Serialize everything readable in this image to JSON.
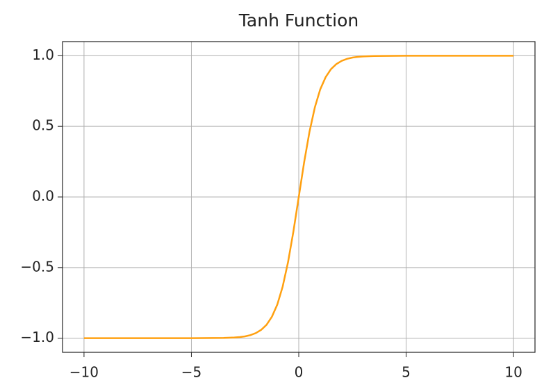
{
  "chart_data": {
    "type": "line",
    "title": "Tanh Function",
    "x": [
      -10,
      -9,
      -8,
      -7,
      -6,
      -5,
      -4,
      -3.5,
      -3,
      -2.75,
      -2.5,
      -2.25,
      -2,
      -1.75,
      -1.5,
      -1.25,
      -1,
      -0.75,
      -0.5,
      -0.25,
      0,
      0.25,
      0.5,
      0.75,
      1,
      1.25,
      1.5,
      1.75,
      2,
      2.25,
      2.5,
      2.75,
      3,
      3.5,
      4,
      5,
      6,
      7,
      8,
      9,
      10
    ],
    "series": [
      {
        "color": "#ffa010",
        "values": [
          -1,
          -1,
          -1,
          -1,
          -1,
          -1,
          -0.999,
          -0.998,
          -0.995,
          -0.992,
          -0.987,
          -0.978,
          -0.964,
          -0.941,
          -0.905,
          -0.848,
          -0.762,
          -0.635,
          -0.462,
          -0.245,
          0,
          0.245,
          0.462,
          0.635,
          0.762,
          0.848,
          0.905,
          0.941,
          0.964,
          0.978,
          0.987,
          0.992,
          0.995,
          0.998,
          0.999,
          1,
          1,
          1,
          1,
          1,
          1
        ]
      }
    ],
    "xlim": [
      -11,
      11
    ],
    "ylim": [
      -1.1,
      1.1
    ],
    "xticks": [
      {
        "value": -10,
        "label": "−10"
      },
      {
        "value": -5,
        "label": "−5"
      },
      0,
      5,
      10
    ],
    "yticks": [
      {
        "value": -1,
        "label": "−1.0"
      },
      {
        "value": -0.5,
        "label": "−0.5"
      },
      {
        "value": 0,
        "label": "0.0"
      },
      0.5,
      {
        "value": 1,
        "label": "1.0"
      }
    ],
    "grid": true
  }
}
